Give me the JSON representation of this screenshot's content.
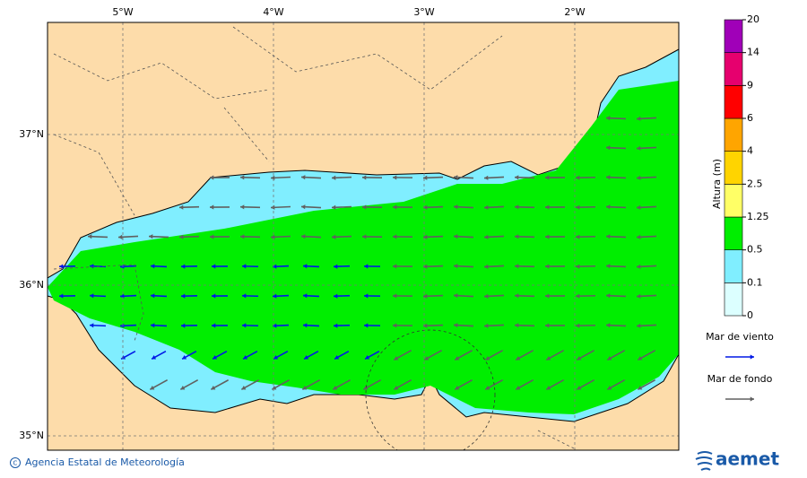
{
  "map": {
    "lon_labels": [
      "5°W",
      "4°W",
      "3°W",
      "2°W"
    ],
    "lat_labels": [
      "37°N",
      "36°N",
      "35°N"
    ]
  },
  "colorbar": {
    "title": "Altura (m)",
    "levels": [
      0,
      0.1,
      0.5,
      1.25,
      2.5,
      4,
      6,
      9,
      14,
      20
    ],
    "colors": [
      "#dcffff",
      "#80eeff",
      "#00ee00",
      "#ffff66",
      "#ffd400",
      "#ffa500",
      "#ff0000",
      "#e6006e",
      "#a000b8"
    ]
  },
  "legend": {
    "items": [
      {
        "label": "Mar de viento",
        "color": "#0018e6"
      },
      {
        "label": "Mar de fondo",
        "color": "#606060"
      }
    ]
  },
  "footer": {
    "credit": "Agencia Estatal de Meteorología",
    "logo": "aemet"
  }
}
